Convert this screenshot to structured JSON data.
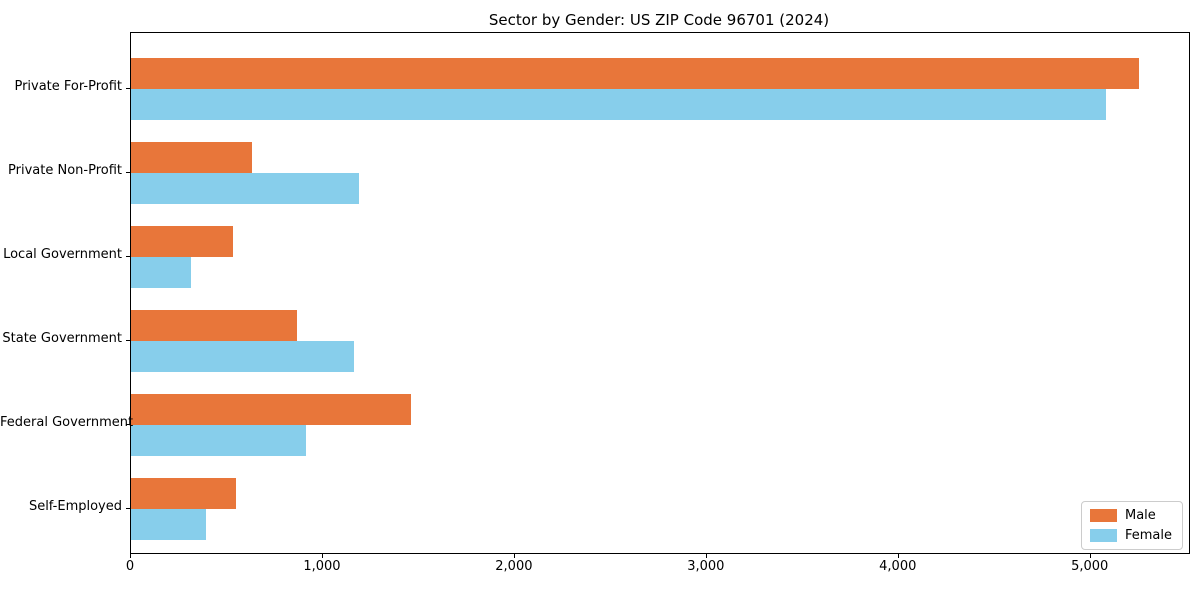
{
  "chart_data": {
    "type": "bar",
    "orientation": "horizontal",
    "title": "Sector by Gender: US ZIP Code 96701 (2024)",
    "categories": [
      "Private For-Profit",
      "Private Non-Profit",
      "Local Government",
      "State Government",
      "Federal Government",
      "Self-Employed"
    ],
    "series": [
      {
        "name": "Male",
        "color": "#e8763a",
        "values": [
          5250,
          630,
          530,
          865,
          1460,
          545
        ]
      },
      {
        "name": "Female",
        "color": "#87ceeb",
        "values": [
          5080,
          1190,
          315,
          1160,
          910,
          390
        ]
      }
    ],
    "xlabel": "",
    "ylabel": "",
    "xlim": [
      0,
      5512
    ],
    "xticks": [
      0,
      1000,
      2000,
      3000,
      4000,
      5000
    ],
    "xtick_labels": [
      "0",
      "1,000",
      "2,000",
      "3,000",
      "4,000",
      "5,000"
    ],
    "grid": false,
    "legend": {
      "position": "lower right",
      "items": [
        "Male",
        "Female"
      ]
    }
  }
}
